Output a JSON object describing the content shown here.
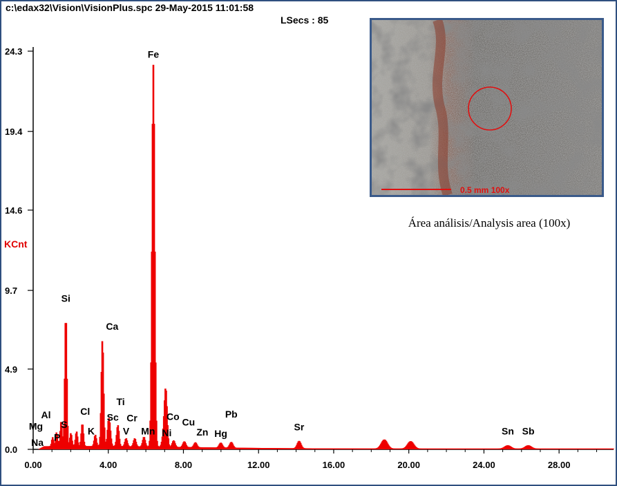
{
  "header": {
    "file_info": "c:\\edax32\\Vision\\VisionPlus.spc  29-May-2015 11:01:58",
    "lsecs": "LSecs :  85"
  },
  "inset": {
    "scale_label": "0.5 mm  100x",
    "caption": "Área análisis/Analysis area (100x)"
  },
  "chart_data": {
    "type": "line",
    "title": "",
    "xlabel": "",
    "ylabel": "KCnt",
    "xlim": [
      0,
      30.9
    ],
    "ylim": [
      0,
      24.3
    ],
    "x_ticks": [
      "0.00",
      "4.00",
      "8.00",
      "12.00",
      "16.00",
      "20.00",
      "24.00",
      "28.00"
    ],
    "y_ticks": [
      "0.0",
      "4.9",
      "9.7",
      "14.6",
      "19.4",
      "24.3"
    ],
    "series_color": "#ee0000",
    "baseline": 0.15,
    "peaks": [
      {
        "x": 1.04,
        "y": 0.55,
        "label": "Na"
      },
      {
        "x": 1.25,
        "y": 0.85,
        "label": "Mg"
      },
      {
        "x": 1.49,
        "y": 1.5,
        "label": "Al"
      },
      {
        "x": 1.74,
        "y": 8.1,
        "label": "Si"
      },
      {
        "x": 2.01,
        "y": 0.8,
        "label": "P"
      },
      {
        "x": 2.31,
        "y": 0.9,
        "label": "S"
      },
      {
        "x": 2.62,
        "y": 1.4,
        "label": "Cl"
      },
      {
        "x": 3.31,
        "y": 0.7,
        "label": "K"
      },
      {
        "x": 3.69,
        "y": 6.5,
        "label": "Ca"
      },
      {
        "x": 4.01,
        "y": 1.3,
        "label": ""
      },
      {
        "x": 4.09,
        "y": 0.8,
        "label": "Sc"
      },
      {
        "x": 4.51,
        "y": 1.3,
        "label": "Ti"
      },
      {
        "x": 4.95,
        "y": 0.5,
        "label": "V"
      },
      {
        "x": 5.41,
        "y": 0.5,
        "label": "Cr"
      },
      {
        "x": 5.9,
        "y": 0.6,
        "label": "Mn"
      },
      {
        "x": 6.4,
        "y": 23.3,
        "label": "Fe"
      },
      {
        "x": 6.93,
        "y": 0.6,
        "label": "Co"
      },
      {
        "x": 7.06,
        "y": 3.5,
        "label": ""
      },
      {
        "x": 7.48,
        "y": 0.4,
        "label": "Ni"
      },
      {
        "x": 8.05,
        "y": 0.35,
        "label": "Cu"
      },
      {
        "x": 8.64,
        "y": 0.3,
        "label": "Zn"
      },
      {
        "x": 9.99,
        "y": 0.3,
        "label": "Hg"
      },
      {
        "x": 10.55,
        "y": 0.35,
        "label": "Pb"
      },
      {
        "x": 14.16,
        "y": 0.45,
        "label": "Sr"
      },
      {
        "x": 18.7,
        "y": 0.55,
        "label": ""
      },
      {
        "x": 20.1,
        "y": 0.45,
        "label": ""
      },
      {
        "x": 25.27,
        "y": 0.2,
        "label": "Sn"
      },
      {
        "x": 26.36,
        "y": 0.2,
        "label": "Sb"
      }
    ]
  }
}
